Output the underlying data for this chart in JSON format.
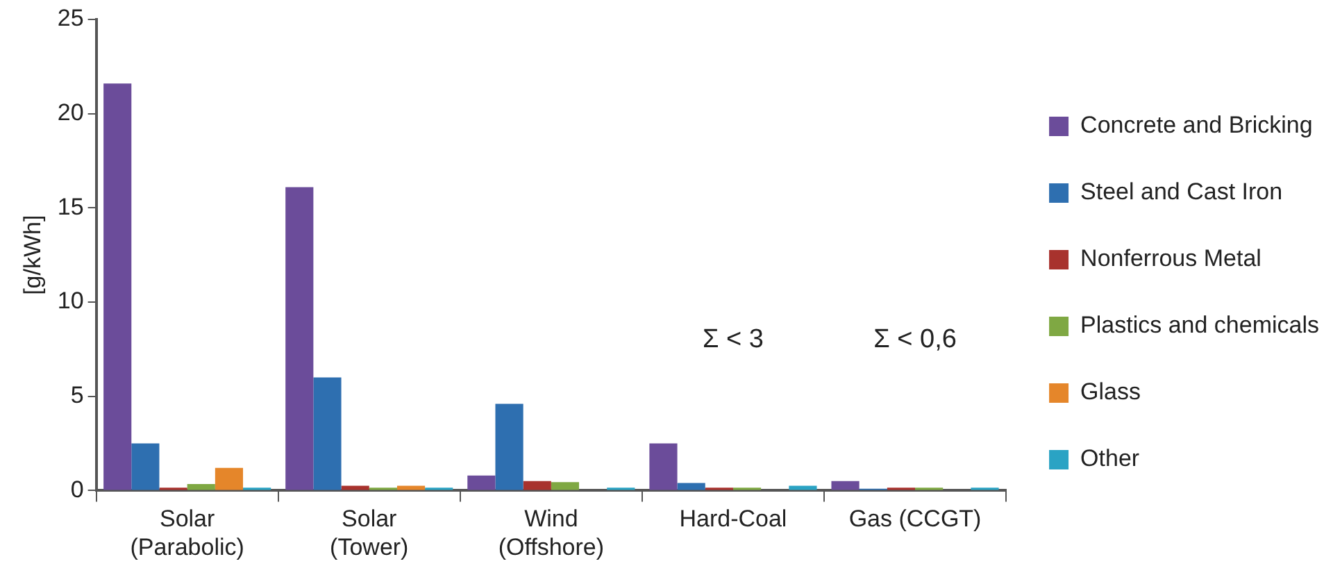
{
  "chart_data": {
    "type": "bar",
    "ylabel": "[g/kWh]",
    "categories": [
      "Solar\n(Parabolic)",
      "Solar\n(Tower)",
      "Wind\n(Offshore)",
      "Hard-Coal",
      "Gas (CCGT)"
    ],
    "series": [
      {
        "name": "Concrete and Bricking",
        "color": "#6b4c9a",
        "values": [
          21.6,
          16.1,
          0.8,
          2.5,
          0.5
        ]
      },
      {
        "name": "Steel and Cast Iron",
        "color": "#2e6fb0",
        "values": [
          2.5,
          6.0,
          4.6,
          0.4,
          0.1
        ]
      },
      {
        "name": "Nonferrous Metal",
        "color": "#a8322d",
        "values": [
          0.15,
          0.25,
          0.5,
          0.15,
          0.15
        ]
      },
      {
        "name": "Plastics and chemicals",
        "color": "#7fa843",
        "values": [
          0.35,
          0.15,
          0.45,
          0.15,
          0.15
        ]
      },
      {
        "name": "Glass",
        "color": "#e5862a",
        "values": [
          1.2,
          0.25,
          0,
          0,
          0
        ]
      },
      {
        "name": "Other",
        "color": "#2aa3c4",
        "values": [
          0.15,
          0.15,
          0.15,
          0.25,
          0.15
        ]
      }
    ],
    "ylim": [
      0,
      25
    ],
    "yticks": [
      0,
      5,
      10,
      15,
      20,
      25
    ],
    "grid": false,
    "legend": "right",
    "annotations": [
      "Σ < 3",
      "Σ < 0,6"
    ]
  }
}
